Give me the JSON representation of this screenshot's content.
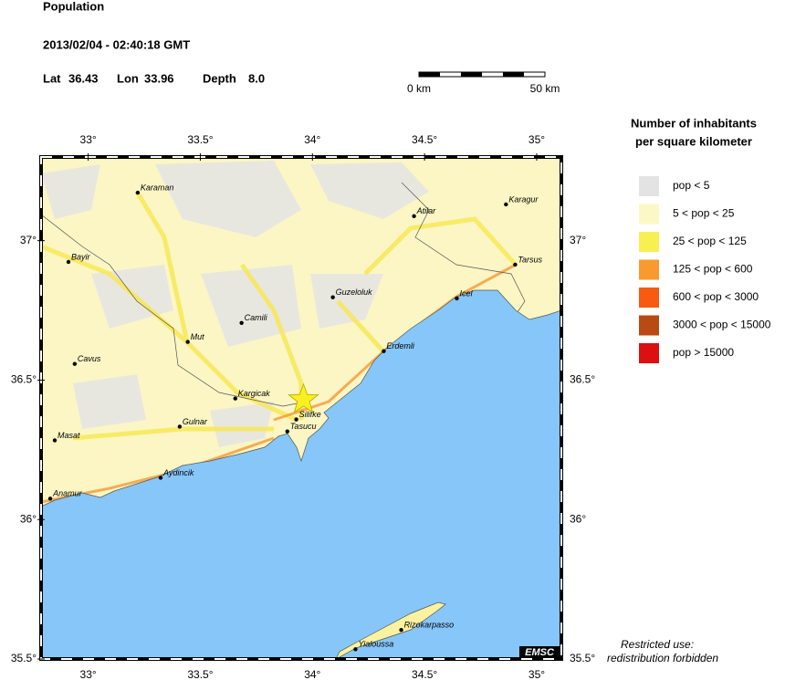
{
  "header": {
    "title": "Population",
    "datetime": "2013/02/04 - 02:40:18 GMT",
    "event": {
      "lat_label": "Lat",
      "lat": 36.43,
      "lon_label": "Lon",
      "lon": 33.96,
      "depth_label": "Depth",
      "depth": "8.0"
    }
  },
  "scale_bar": {
    "start": "0 km",
    "end": "50 km"
  },
  "map": {
    "xlim": [
      32.79,
      35.11
    ],
    "ylim": [
      35.5,
      37.3
    ],
    "xticks": [
      {
        "value": 33,
        "label": "33°"
      },
      {
        "value": 33.5,
        "label": "33.5°"
      },
      {
        "value": 34,
        "label": "34°"
      },
      {
        "value": 34.5,
        "label": "34.5°"
      },
      {
        "value": 35,
        "label": "35°"
      }
    ],
    "yticks": [
      {
        "value": 35.5,
        "label": "35.5°"
      },
      {
        "value": 36,
        "label": "36°"
      },
      {
        "value": 36.5,
        "label": "36.5°"
      },
      {
        "value": 37,
        "label": "37°"
      }
    ],
    "cities": [
      {
        "name": "Karaman",
        "lon": 33.221,
        "lat": 37.172
      },
      {
        "name": "Atilar",
        "lon": 34.453,
        "lat": 37.088
      },
      {
        "name": "Karagur",
        "lon": 34.863,
        "lat": 37.13
      },
      {
        "name": "Bayir",
        "lon": 32.912,
        "lat": 36.924
      },
      {
        "name": "Tarsus",
        "lon": 34.904,
        "lat": 36.914
      },
      {
        "name": "Guzeloluk",
        "lon": 34.091,
        "lat": 36.797
      },
      {
        "name": "Icel",
        "lon": 34.644,
        "lat": 36.793
      },
      {
        "name": "Camili",
        "lon": 33.684,
        "lat": 36.705
      },
      {
        "name": "Mut",
        "lon": 33.444,
        "lat": 36.637
      },
      {
        "name": "Erdemli",
        "lon": 34.318,
        "lat": 36.604
      },
      {
        "name": "Cavus",
        "lon": 32.94,
        "lat": 36.558
      },
      {
        "name": "Kargicak",
        "lon": 33.656,
        "lat": 36.434
      },
      {
        "name": "Silifke",
        "lon": 33.928,
        "lat": 36.359
      },
      {
        "name": "Tasucu",
        "lon": 33.888,
        "lat": 36.316
      },
      {
        "name": "Gulnar",
        "lon": 33.408,
        "lat": 36.333
      },
      {
        "name": "Masat",
        "lon": 32.851,
        "lat": 36.284
      },
      {
        "name": "Aydincik",
        "lon": 33.323,
        "lat": 36.15
      },
      {
        "name": "Anamur",
        "lon": 32.831,
        "lat": 36.075
      },
      {
        "name": "Rizokarpasso",
        "lon": 34.396,
        "lat": 35.604
      },
      {
        "name": "Yialoussa",
        "lon": 34.192,
        "lat": 35.535
      }
    ],
    "badge": "EMSC"
  },
  "legend": {
    "title": [
      "Number of inhabitants",
      "per square kilometer"
    ],
    "items": [
      {
        "label": "pop < 5",
        "color": "#e3e3e3"
      },
      {
        "label": "5 < pop < 25",
        "color": "#fbf8c6"
      },
      {
        "label": "25 < pop < 125",
        "color": "#f8f050"
      },
      {
        "label": "125 < pop < 600",
        "color": "#f89a30"
      },
      {
        "label": "600 < pop < 3000",
        "color": "#f85a12"
      },
      {
        "label": "3000 < pop < 15000",
        "color": "#b84a14"
      },
      {
        "label": "pop > 15000",
        "color": "#dc1010"
      }
    ]
  },
  "note": [
    "Restricted use:",
    "redistribution forbidden"
  ]
}
